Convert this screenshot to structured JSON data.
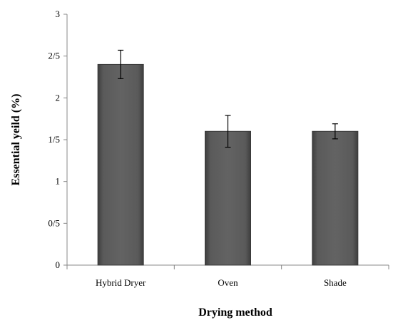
{
  "chart_data": {
    "type": "bar",
    "categories": [
      "Hybrid Dryer",
      "Oven",
      "Shade"
    ],
    "values": [
      2.4,
      1.6,
      1.6
    ],
    "error": [
      0.17,
      0.19,
      0.09
    ],
    "xlabel": "Drying method",
    "ylabel": "Essential  yeild (%)",
    "ylim": [
      0,
      3
    ],
    "yticks": [
      0,
      0.5,
      1,
      1.5,
      2,
      2.5,
      3
    ],
    "ytick_labels": [
      "0",
      "0/5",
      "1",
      "1/5",
      "2",
      "2/5",
      "3"
    ],
    "grid": false,
    "legend": "none",
    "bar_color": "#5c5c5c"
  }
}
